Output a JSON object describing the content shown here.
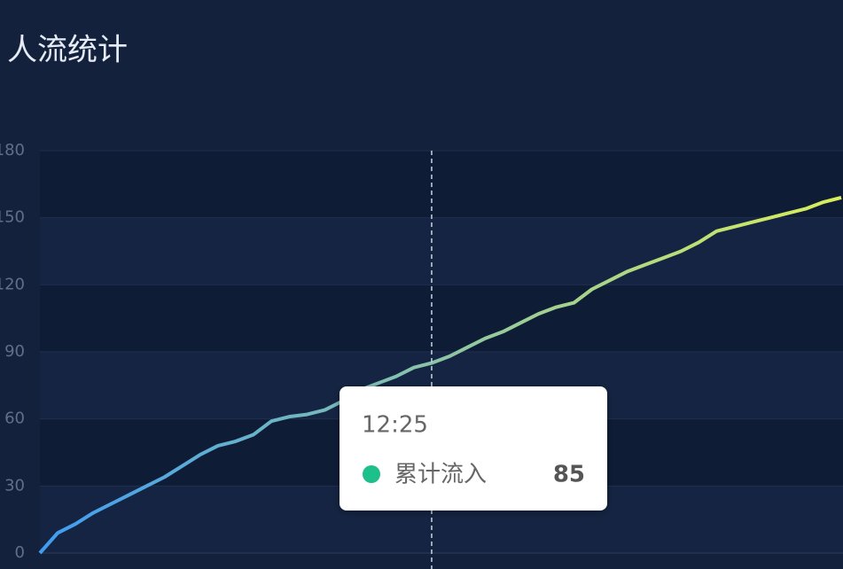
{
  "chart_data": {
    "type": "line",
    "title": "人流统计",
    "categories": [
      null,
      null,
      null,
      null,
      null,
      null,
      null,
      null,
      null,
      null,
      null,
      null,
      null,
      null,
      null,
      null,
      null,
      null,
      null,
      null,
      null,
      null,
      "12:25",
      null,
      null,
      null,
      null,
      null,
      null,
      null,
      null,
      null,
      null,
      null,
      null,
      null,
      null,
      null,
      null,
      null,
      null,
      null,
      null,
      null,
      null,
      null
    ],
    "series": [
      {
        "name": "累计流入",
        "color": "#1dbf8a",
        "values": [
          0,
          9,
          13,
          18,
          22,
          26,
          30,
          34,
          39,
          44,
          48,
          50,
          53,
          59,
          61,
          62,
          64,
          68,
          73,
          76,
          79,
          83,
          85,
          88,
          92,
          96,
          99,
          103,
          107,
          110,
          112,
          118,
          122,
          126,
          129,
          132,
          135,
          139,
          144,
          146,
          148,
          150,
          152,
          154,
          157,
          159
        ]
      }
    ],
    "line_gradient": [
      "#3f9cf2",
      "#d9ee5a"
    ],
    "ylim": [
      0,
      180
    ],
    "yticks": [
      0,
      30,
      60,
      90,
      120,
      150,
      180
    ],
    "grid": true,
    "tooltip_index": 22
  }
}
